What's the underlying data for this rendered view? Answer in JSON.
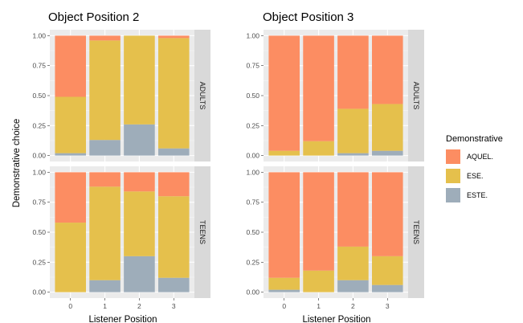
{
  "chart_data": {
    "type": "bar",
    "stacked": true,
    "panel_titles": [
      "Object Position 2",
      "Object Position 3"
    ],
    "facet_rows": [
      "ADULTS",
      "TEENS"
    ],
    "xlabel": "Listener Position",
    "ylabel": "Demonstrative choice",
    "categories": [
      "0",
      "1",
      "2",
      "3"
    ],
    "ylim": [
      0,
      1
    ],
    "yticks": [
      "0.00",
      "0.25",
      "0.50",
      "0.75",
      "1.00"
    ],
    "legend": {
      "title": "Demonstrative",
      "position": "right",
      "items": [
        {
          "label": "AQUEL.",
          "color": "#FC8D62"
        },
        {
          "label": "ESE.",
          "color": "#E5C04C"
        },
        {
          "label": "ESTE.",
          "color": "#9EADBA"
        }
      ]
    },
    "panels": [
      {
        "title": "Object Position 2",
        "row": "ADULTS",
        "series": [
          {
            "name": "ESTE.",
            "values": [
              0.02,
              0.13,
              0.26,
              0.06
            ]
          },
          {
            "name": "ESE.",
            "values": [
              0.47,
              0.83,
              0.74,
              0.92
            ]
          },
          {
            "name": "AQUEL.",
            "values": [
              0.51,
              0.04,
              0.0,
              0.02
            ]
          }
        ]
      },
      {
        "title": "Object Position 3",
        "row": "ADULTS",
        "series": [
          {
            "name": "ESTE.",
            "values": [
              0.0,
              0.0,
              0.02,
              0.04
            ]
          },
          {
            "name": "ESE.",
            "values": [
              0.04,
              0.12,
              0.37,
              0.39
            ]
          },
          {
            "name": "AQUEL.",
            "values": [
              0.96,
              0.88,
              0.61,
              0.57
            ]
          }
        ]
      },
      {
        "title": "Object Position 2",
        "row": "TEENS",
        "series": [
          {
            "name": "ESTE.",
            "values": [
              0.0,
              0.1,
              0.3,
              0.12
            ]
          },
          {
            "name": "ESE.",
            "values": [
              0.58,
              0.78,
              0.54,
              0.68
            ]
          },
          {
            "name": "AQUEL.",
            "values": [
              0.42,
              0.12,
              0.16,
              0.2
            ]
          }
        ]
      },
      {
        "title": "Object Position 3",
        "row": "TEENS",
        "series": [
          {
            "name": "ESTE.",
            "values": [
              0.02,
              0.0,
              0.1,
              0.06
            ]
          },
          {
            "name": "ESE.",
            "values": [
              0.1,
              0.18,
              0.28,
              0.24
            ]
          },
          {
            "name": "AQUEL.",
            "values": [
              0.88,
              0.82,
              0.62,
              0.7
            ]
          }
        ]
      }
    ],
    "grid": true
  }
}
